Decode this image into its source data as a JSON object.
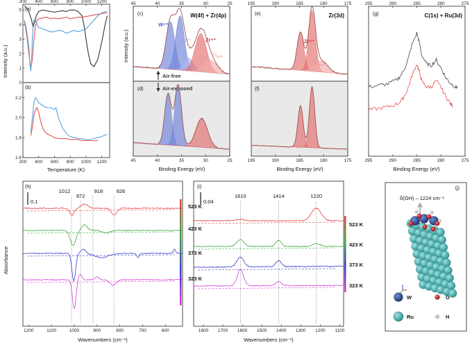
{
  "chart_data": [
    {
      "id": "a",
      "type": "line",
      "label": "(a)",
      "ylabel": "Intensity (a.u.)",
      "xlim": [
        200,
        1300
      ],
      "ylim": [
        0,
        5.4
      ],
      "xticks": [
        "200",
        "400",
        "600",
        "800",
        "1000",
        "1200"
      ],
      "yticks": [
        "0",
        "1",
        "2",
        "3",
        "4",
        "5"
      ],
      "series": [
        {
          "name": "black",
          "color": "#333333",
          "x": [
            220,
            250,
            280,
            310,
            330,
            350,
            370,
            400,
            450,
            500,
            550,
            600,
            650,
            700,
            750,
            800,
            850,
            900,
            950,
            980,
            1000,
            1030,
            1060,
            1100,
            1150,
            1200,
            1250,
            1270
          ],
          "y": [
            5.3,
            5.1,
            4.8,
            4.3,
            3.8,
            4.2,
            4.6,
            4.9,
            5.0,
            4.95,
            4.9,
            4.85,
            4.9,
            4.95,
            4.9,
            5.0,
            5.0,
            4.9,
            4.6,
            3.8,
            3.0,
            2.0,
            1.3,
            1.1,
            1.6,
            2.8,
            4.2,
            4.6
          ]
        },
        {
          "name": "red",
          "color": "#e05555",
          "x": [
            220,
            250,
            280,
            300,
            320,
            340,
            360,
            380,
            400,
            450,
            500,
            550,
            600,
            650,
            700,
            750,
            800,
            850,
            900,
            950,
            1000,
            1050,
            1100,
            1150,
            1200,
            1250,
            1270
          ],
          "y": [
            4.2,
            3.2,
            1.8,
            1.0,
            1.6,
            3.0,
            3.9,
            4.3,
            4.4,
            4.45,
            4.5,
            4.4,
            4.45,
            4.4,
            4.45,
            4.5,
            4.4,
            4.45,
            4.5,
            4.5,
            4.55,
            4.6,
            4.65,
            4.7,
            4.75,
            4.8,
            4.8
          ]
        },
        {
          "name": "blue",
          "color": "#5aa3dc",
          "x": [
            220,
            240,
            260,
            280,
            290,
            300,
            310,
            320,
            330,
            340,
            350,
            360,
            380,
            400,
            450,
            500,
            550,
            600,
            650,
            700,
            750,
            800,
            850,
            900,
            950,
            1000,
            1050,
            1100,
            1150,
            1200,
            1250,
            1270
          ],
          "y": [
            4.3,
            3.8,
            3.1,
            2.2,
            1.2,
            0.8,
            1.5,
            3.0,
            3.9,
            4.3,
            4.35,
            4.25,
            4.0,
            3.8,
            3.7,
            3.6,
            3.5,
            3.5,
            3.6,
            3.55,
            3.4,
            3.5,
            3.6,
            3.5,
            3.6,
            3.7,
            4.0,
            4.3,
            4.6,
            4.8,
            4.9,
            4.9
          ]
        }
      ]
    },
    {
      "id": "b",
      "type": "line",
      "label": "(b)",
      "ylabel": "Intensity (a.u.)",
      "xlabel": "Temperature (K)",
      "xlim": [
        200,
        1300
      ],
      "ylim": [
        1.6,
        2.35
      ],
      "xticks": [
        "200",
        "400",
        "600",
        "800",
        "1000",
        "1200"
      ],
      "yticks": [
        "1.6",
        "1.8",
        "2.0",
        "2.2"
      ],
      "series": [
        {
          "name": "blue",
          "color": "#5aa3dc",
          "x": [
            300,
            320,
            340,
            360,
            380,
            400,
            450,
            500,
            550,
            600,
            620,
            650,
            700,
            750,
            800,
            850,
            900,
            950,
            1000,
            1050,
            1100,
            1150,
            1200,
            1250,
            1270
          ],
          "y": [
            1.85,
            2.0,
            2.15,
            2.2,
            2.18,
            2.15,
            2.12,
            2.1,
            2.1,
            2.08,
            2.1,
            2.0,
            1.9,
            1.84,
            1.81,
            1.8,
            1.79,
            1.79,
            1.78,
            1.78,
            1.79,
            1.8,
            1.81,
            1.83,
            1.83
          ]
        },
        {
          "name": "red",
          "color": "#e05555",
          "x": [
            300,
            320,
            340,
            360,
            380,
            400,
            430,
            460,
            500,
            550,
            600,
            650,
            700,
            750,
            800,
            850,
            900,
            950,
            1000,
            1050,
            1100,
            1150
          ],
          "y": [
            1.82,
            1.9,
            2.02,
            2.08,
            2.1,
            2.05,
            1.95,
            1.88,
            1.84,
            1.82,
            1.8,
            1.79,
            1.79,
            1.79,
            1.78,
            1.78,
            1.78,
            1.77,
            1.77,
            1.77,
            1.77,
            1.77
          ]
        }
      ]
    },
    {
      "id": "c",
      "type": "area",
      "label": "(c)",
      "title": "W(4f) + Zr(4p)",
      "ylabel": "Intensity (a.u.)",
      "xlim": [
        45,
        25
      ],
      "xticks": [
        "45",
        "40",
        "35",
        "30",
        "25"
      ],
      "annotations": [
        "W⁶⁺",
        "W⁴⁺",
        "Zr⁴⁺",
        "Zr",
        "bulk",
        "Air-free"
      ],
      "peaks": [
        {
          "name": "W6+ 4f7/2",
          "center": 37.3,
          "height": 0.75,
          "width": 0.9,
          "color": "#6f82d8"
        },
        {
          "name": "W6+ 4f5/2",
          "center": 35.3,
          "height": 0.85,
          "width": 0.9,
          "color": "#6f82d8"
        },
        {
          "name": "W4+",
          "center": 33.5,
          "height": 0.2,
          "width": 1.0,
          "color": "#aab5ee"
        },
        {
          "name": "Zr4+",
          "center": 31.0,
          "height": 0.6,
          "width": 1.2,
          "color": "#e46d6d"
        },
        {
          "name": "Zr bulk",
          "center": 29.0,
          "height": 0.2,
          "width": 1.4,
          "color": "#f2aaaa"
        }
      ]
    },
    {
      "id": "d",
      "type": "area",
      "label": "(d)",
      "xlabel": "Binding Energy (eV)",
      "xlim": [
        45,
        25
      ],
      "xticks": [
        "45",
        "40",
        "35",
        "30",
        "25"
      ],
      "annotations": [
        "Air-exposed"
      ],
      "peaks": [
        {
          "name": "W6+ 4f7/2",
          "center": 37.8,
          "height": 0.8,
          "width": 0.7,
          "color": "#6f82d8"
        },
        {
          "name": "W6+ 4f5/2",
          "center": 35.7,
          "height": 0.95,
          "width": 0.7,
          "color": "#6f82d8"
        },
        {
          "name": "Zr4+",
          "center": 30.8,
          "height": 0.45,
          "width": 1.2,
          "color": "#e46d6d"
        }
      ]
    },
    {
      "id": "e",
      "type": "area",
      "label": "(e)",
      "title": "Zr(3d)",
      "xlim": [
        195,
        175
      ],
      "xticks": [
        "195",
        "190",
        "185",
        "180",
        "175"
      ],
      "annotations": [
        "Zr⁴⁺",
        "Zr",
        "bulk"
      ],
      "peaks": [
        {
          "name": "Zr4+ 3d3/2",
          "center": 184.8,
          "height": 0.6,
          "width": 0.7,
          "color": "#e46d6d"
        },
        {
          "name": "Zr4+ 3d5/2",
          "center": 182.4,
          "height": 0.95,
          "width": 0.7,
          "color": "#e46d6d"
        },
        {
          "name": "Zr bulk",
          "center": 180.5,
          "height": 0.18,
          "width": 1.3,
          "color": "#f2aaaa"
        }
      ]
    },
    {
      "id": "f",
      "type": "area",
      "label": "(f)",
      "xlabel": "Binding Energy (eV)",
      "xlim": [
        195,
        175
      ],
      "xticks": [
        "195",
        "190",
        "185",
        "180",
        "175"
      ],
      "peaks": [
        {
          "name": "Zr4+ 3d3/2",
          "center": 184.8,
          "height": 0.65,
          "width": 0.55,
          "color": "#e46d6d"
        },
        {
          "name": "Zr4+ 3d5/2",
          "center": 182.4,
          "height": 0.95,
          "width": 0.55,
          "color": "#e46d6d"
        }
      ]
    },
    {
      "id": "g",
      "type": "line",
      "label": "(g)",
      "title": "C(1s) + Ru(3d)",
      "xlabel": "Binding Energy (eV)",
      "xlim": [
        295,
        275
      ],
      "xticks": [
        "295",
        "290",
        "285",
        "280",
        "275"
      ],
      "series": [
        {
          "name": "gray",
          "color": "#444444",
          "x": [
            295,
            293,
            291,
            289,
            288,
            287,
            286,
            285,
            284.5,
            284,
            283,
            282,
            281,
            280,
            279,
            278,
            277,
            276.5
          ],
          "y": [
            0.3,
            0.32,
            0.34,
            0.4,
            0.48,
            0.62,
            0.85,
            1.0,
            0.88,
            0.72,
            0.6,
            0.58,
            0.65,
            0.55,
            0.42,
            0.35,
            0.3,
            0.3
          ]
        },
        {
          "name": "red",
          "color": "#e84b4b",
          "x": [
            295,
            293,
            291,
            289,
            288,
            287,
            286,
            285,
            284.5,
            284,
            283,
            282,
            281,
            280,
            279,
            278,
            277.5
          ],
          "y": [
            0.0,
            0.02,
            0.04,
            0.08,
            0.14,
            0.25,
            0.45,
            0.6,
            0.5,
            0.38,
            0.3,
            0.3,
            0.38,
            0.3,
            0.18,
            0.08,
            0.05
          ]
        }
      ]
    },
    {
      "id": "h",
      "type": "line",
      "label": "(h)",
      "ylabel": "Absorbance",
      "xlabel": "Wavenumbers (cm⁻¹)",
      "xlim": [
        1225,
        525
      ],
      "xticks": [
        "1200",
        "1100",
        "1000",
        "900",
        "800",
        "700",
        "600"
      ],
      "scalebar": "0.1",
      "peak_lines": [
        "1012",
        "972",
        "918",
        "826"
      ],
      "series": [
        {
          "name": "523 K",
          "color": "#e84040"
        },
        {
          "name": "423 K",
          "color": "#3ea83e"
        },
        {
          "name": "373 K",
          "color": "#3b3bd0"
        },
        {
          "name": "323 K",
          "color": "#d63dd6"
        }
      ]
    },
    {
      "id": "i",
      "type": "line",
      "label": "(i)",
      "xlabel": "Wavenumbers (cm⁻¹)",
      "xlim": [
        1850,
        1080
      ],
      "xticks": [
        "1800",
        "1700",
        "1600",
        "1500",
        "1400",
        "1300",
        "1200",
        "1100"
      ],
      "scalebar": "0.04",
      "peak_lines": [
        "1610",
        "1414",
        "1220"
      ],
      "series": [
        {
          "name": "523 K",
          "color": "#e84040"
        },
        {
          "name": "423 K",
          "color": "#3ea83e"
        },
        {
          "name": "373 K",
          "color": "#3b3bd0"
        },
        {
          "name": "323 K",
          "color": "#d63dd6"
        }
      ]
    },
    {
      "id": "j",
      "type": "diagram",
      "label": "(j)",
      "title": "δ(OH) – 1224 cm⁻¹",
      "legend": [
        {
          "label": "W",
          "color": "#2f4f9a"
        },
        {
          "label": "O",
          "color": "#cc1a1a"
        },
        {
          "label": "Ru",
          "color": "#3aa8a8"
        },
        {
          "label": "H",
          "color": "#b8b8b8"
        }
      ]
    }
  ]
}
